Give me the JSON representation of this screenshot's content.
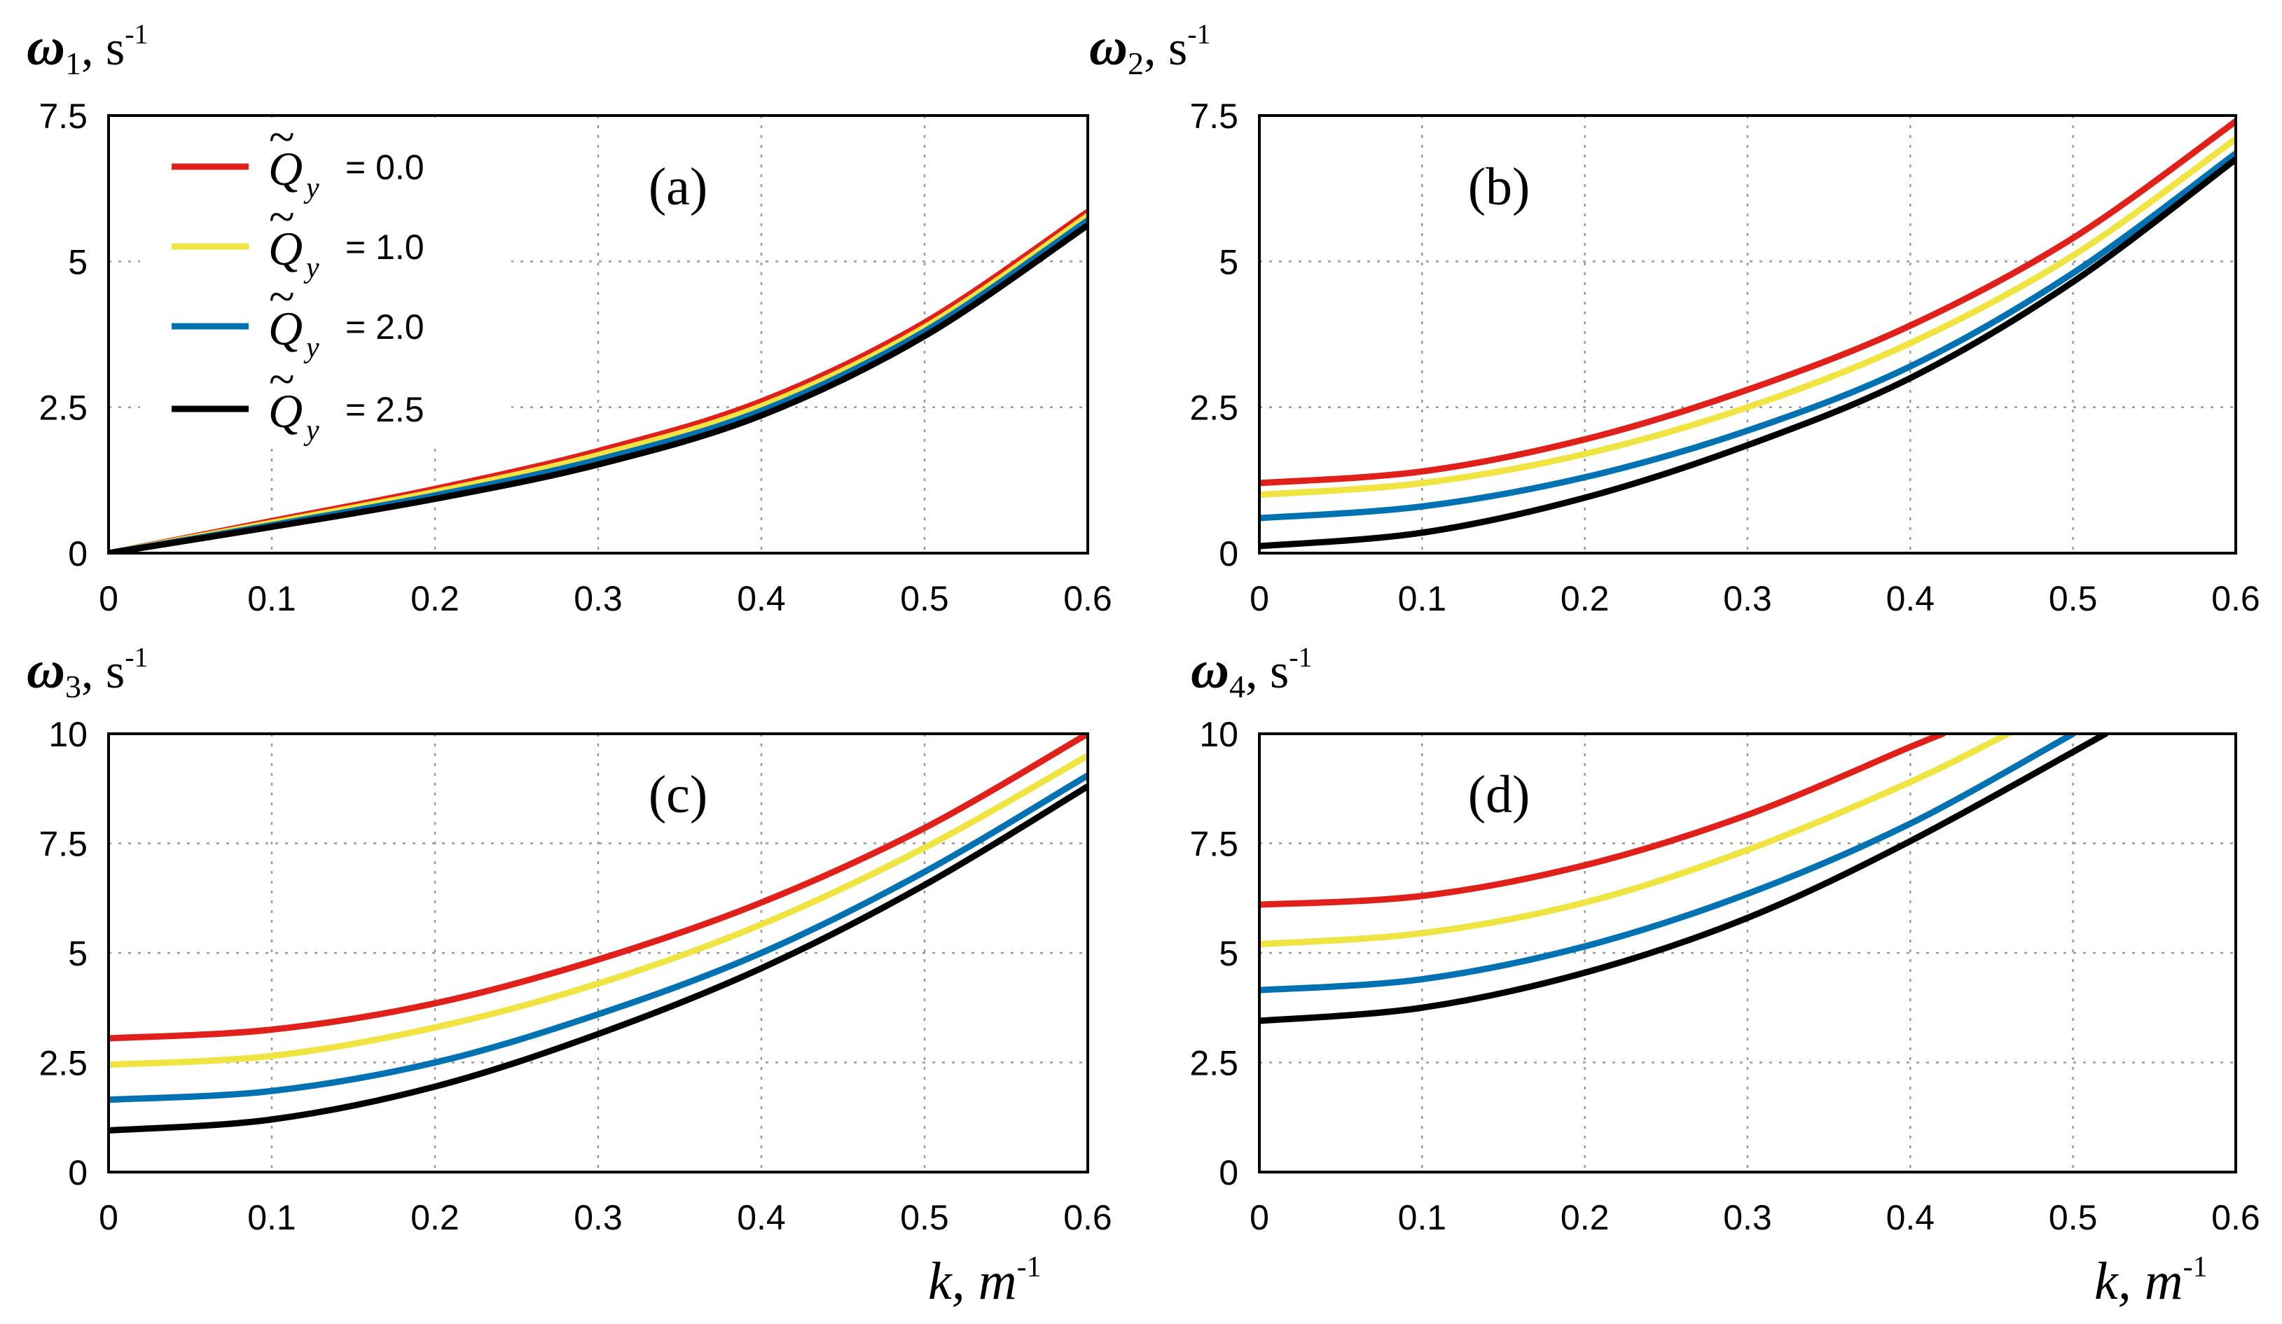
{
  "colors": {
    "series": [
      "#e0201b",
      "#f0e442",
      "#0072b2",
      "#000000"
    ]
  },
  "legend": {
    "symbol": "Q",
    "tilde": "~",
    "subscript": "y",
    "entries": [
      "= 0.0",
      "= 1.0",
      "= 2.0",
      "= 2.5"
    ]
  },
  "chart_data": [
    {
      "type": "line",
      "panel": "(a)",
      "ylabel": {
        "symbol": "ω",
        "sub": "1",
        "unit": ", s",
        "sup": "-1"
      },
      "xlabel": null,
      "xlim": [
        0,
        0.6
      ],
      "ylim": [
        0,
        7.5
      ],
      "xticks": [
        "0",
        "0.1",
        "0.2",
        "0.3",
        "0.4",
        "0.5",
        "0.6"
      ],
      "yticks": [
        "0",
        "2.5",
        "5",
        "7.5"
      ],
      "grid": true,
      "legend_position": "top-left",
      "x": [
        0,
        0.1,
        0.2,
        0.3,
        0.4,
        0.5,
        0.6
      ],
      "series": [
        {
          "name": "= 0.0",
          "values": [
            0,
            0.55,
            1.1,
            1.75,
            2.6,
            3.95,
            5.85
          ]
        },
        {
          "name": "= 1.0",
          "values": [
            0,
            0.52,
            1.05,
            1.68,
            2.52,
            3.87,
            5.78
          ]
        },
        {
          "name": "= 2.0",
          "values": [
            0,
            0.48,
            0.99,
            1.6,
            2.44,
            3.8,
            5.7
          ]
        },
        {
          "name": "= 2.5",
          "values": [
            0,
            0.45,
            0.93,
            1.52,
            2.36,
            3.72,
            5.62
          ]
        }
      ]
    },
    {
      "type": "line",
      "panel": "(b)",
      "ylabel": {
        "symbol": "ω",
        "sub": "2",
        "unit": ", s",
        "sup": "-1"
      },
      "xlabel": null,
      "xlim": [
        0,
        0.6
      ],
      "ylim": [
        0,
        7.5
      ],
      "xticks": [
        "0",
        "0.1",
        "0.2",
        "0.3",
        "0.4",
        "0.5",
        "0.6"
      ],
      "yticks": [
        "0",
        "2.5",
        "5",
        "7.5"
      ],
      "grid": true,
      "x": [
        0,
        0.1,
        0.2,
        0.3,
        0.4,
        0.5,
        0.6
      ],
      "series": [
        {
          "name": "= 0.0",
          "values": [
            1.2,
            1.4,
            1.95,
            2.8,
            3.9,
            5.4,
            7.4
          ]
        },
        {
          "name": "= 1.0",
          "values": [
            1.0,
            1.2,
            1.7,
            2.5,
            3.6,
            5.1,
            7.1
          ]
        },
        {
          "name": "= 2.0",
          "values": [
            0.6,
            0.8,
            1.3,
            2.1,
            3.2,
            4.8,
            6.85
          ]
        },
        {
          "name": "= 2.5",
          "values": [
            0.12,
            0.35,
            0.95,
            1.85,
            3.0,
            4.65,
            6.75
          ]
        }
      ]
    },
    {
      "type": "line",
      "panel": "(c)",
      "ylabel": {
        "symbol": "ω",
        "sub": "3",
        "unit": ", s",
        "sup": "-1"
      },
      "xlabel": {
        "symbol": "k",
        "unit": ", m",
        "sup": "-1"
      },
      "xlim": [
        0,
        0.6
      ],
      "ylim": [
        0,
        10
      ],
      "xticks": [
        "0",
        "0.1",
        "0.2",
        "0.3",
        "0.4",
        "0.5",
        "0.6"
      ],
      "yticks": [
        "0",
        "2.5",
        "5",
        "7.5",
        "10"
      ],
      "grid": true,
      "x": [
        0,
        0.1,
        0.2,
        0.3,
        0.4,
        0.5,
        0.6
      ],
      "series": [
        {
          "name": "= 0.0",
          "values": [
            3.05,
            3.25,
            3.85,
            4.85,
            6.15,
            7.85,
            10.0
          ]
        },
        {
          "name": "= 1.0",
          "values": [
            2.45,
            2.65,
            3.3,
            4.3,
            5.65,
            7.4,
            9.5
          ]
        },
        {
          "name": "= 2.0",
          "values": [
            1.65,
            1.85,
            2.5,
            3.6,
            5.0,
            6.85,
            9.05
          ]
        },
        {
          "name": "= 2.5",
          "values": [
            0.95,
            1.2,
            1.95,
            3.15,
            4.65,
            6.55,
            8.8
          ]
        }
      ]
    },
    {
      "type": "line",
      "panel": "(d)",
      "ylabel": {
        "symbol": "ω",
        "sub": "4",
        "unit": ", s",
        "sup": "-1"
      },
      "xlabel": {
        "symbol": "k",
        "unit": ", m",
        "sup": "-1"
      },
      "xlim": [
        0,
        0.6
      ],
      "ylim": [
        0,
        10
      ],
      "xticks": [
        "0",
        "0.1",
        "0.2",
        "0.3",
        "0.4",
        "0.5",
        "0.6"
      ],
      "yticks": [
        "0",
        "2.5",
        "5",
        "7.5",
        "10"
      ],
      "grid": true,
      "x": [
        0,
        0.1,
        0.2,
        0.3,
        0.4,
        0.42,
        0.46,
        0.5,
        0.52
      ],
      "series": [
        {
          "name": "= 0.0",
          "values": [
            6.1,
            6.3,
            7.0,
            8.15,
            9.7,
            10.0,
            null,
            null,
            null
          ]
        },
        {
          "name": "= 1.0",
          "values": [
            5.2,
            5.45,
            6.15,
            7.35,
            8.9,
            null,
            10.0,
            null,
            null
          ]
        },
        {
          "name": "= 2.0",
          "values": [
            4.15,
            4.4,
            5.15,
            6.35,
            7.95,
            null,
            null,
            10.0,
            null
          ]
        },
        {
          "name": "= 2.5",
          "values": [
            3.45,
            3.75,
            4.55,
            5.8,
            7.55,
            null,
            null,
            null,
            10.0
          ]
        }
      ]
    }
  ]
}
